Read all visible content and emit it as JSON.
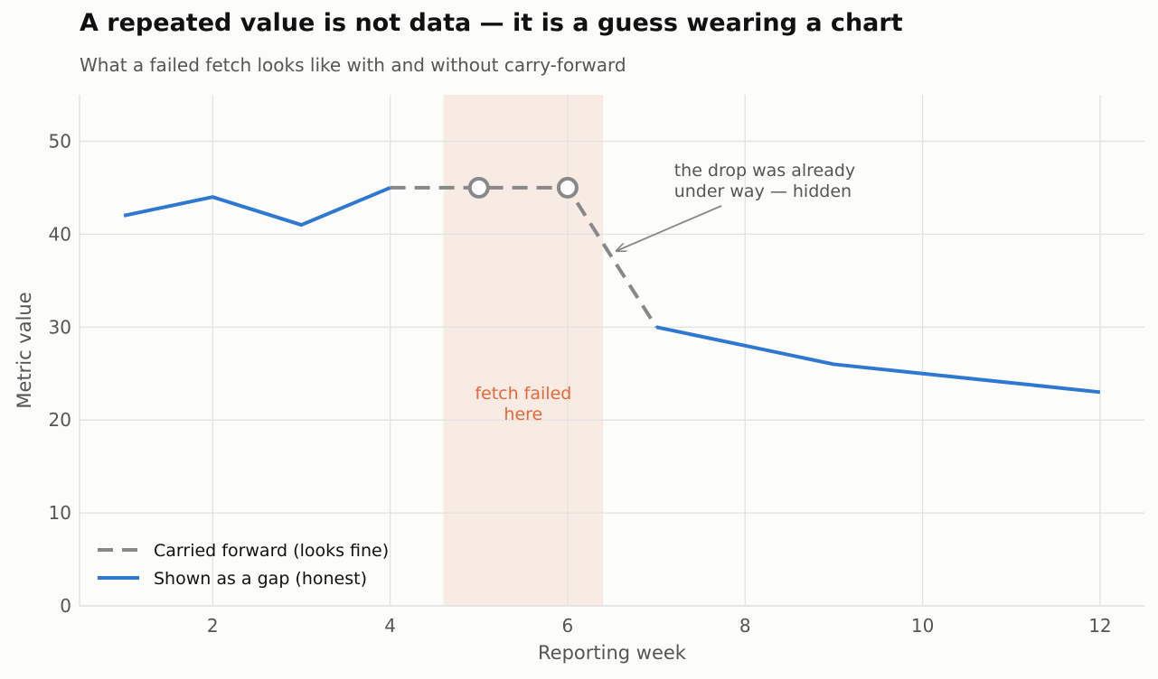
{
  "title": "A repeated value is not data — it is a guess wearing a chart",
  "subtitle": "What a failed fetch looks like with and without carry-forward",
  "colors": {
    "honest": "#2E78D2",
    "carried": "#888888",
    "failed_band": "#F4D9CC",
    "failed_text": "#E8673A",
    "grid": "#E2E2E2",
    "axis_text": "#555555"
  },
  "chart_data": {
    "type": "line",
    "xlabel": "Reporting week",
    "ylabel": "Metric value",
    "xlim": [
      0.5,
      12.5
    ],
    "ylim": [
      0,
      55
    ],
    "xticks": [
      2,
      4,
      6,
      8,
      10,
      12
    ],
    "yticks": [
      0,
      10,
      20,
      30,
      40,
      50
    ],
    "grid": true,
    "legend_position": "bottom-left",
    "series": [
      {
        "name": "Carried forward (looks fine)",
        "style": "dashed",
        "x": [
          4,
          5,
          6,
          7
        ],
        "y": [
          45,
          45,
          45,
          30
        ],
        "markers": [
          {
            "x": 5,
            "y": 45
          },
          {
            "x": 6,
            "y": 45
          }
        ]
      },
      {
        "name": "Shown as a gap (honest)",
        "style": "solid",
        "segments": [
          {
            "x": [
              1,
              2,
              3,
              4
            ],
            "y": [
              42,
              44,
              41,
              45
            ]
          },
          {
            "x": [
              7,
              8,
              9,
              10,
              11,
              12
            ],
            "y": [
              30,
              28,
              26,
              25,
              24,
              23
            ]
          }
        ]
      }
    ],
    "shaded_region": {
      "x_range": [
        4.6,
        6.4
      ],
      "label_lines": [
        "fetch failed",
        "here"
      ]
    },
    "annotation": {
      "text_lines": [
        "the drop was already",
        "under way — hidden"
      ],
      "text_at": [
        7.2,
        45
      ],
      "arrow_to": [
        6.55,
        38.2
      ]
    }
  }
}
